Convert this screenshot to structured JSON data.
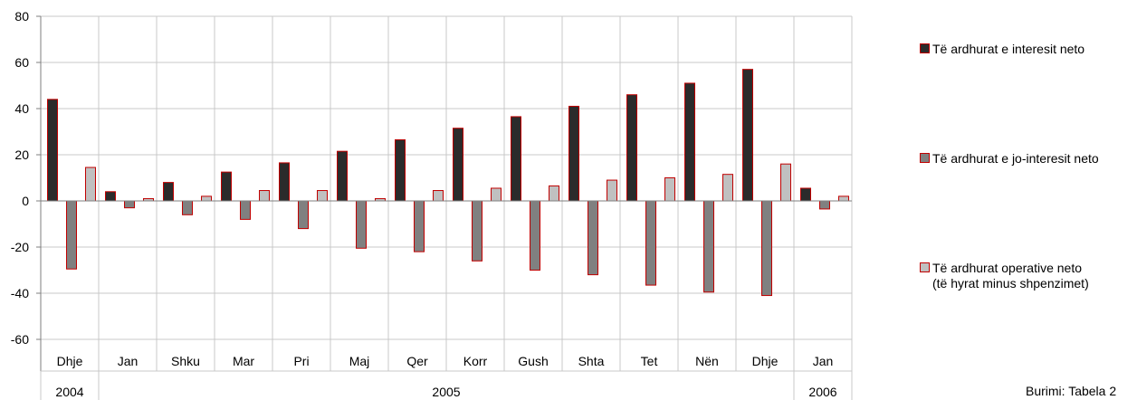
{
  "chart_data": {
    "type": "bar",
    "categories": [
      "Dhje",
      "Jan",
      "Shku",
      "Mar",
      "Pri",
      "Maj",
      "Qer",
      "Korr",
      "Gush",
      "Shta",
      "Tet",
      "Nën",
      "Dhje",
      "Jan"
    ],
    "year_groups": [
      {
        "label": "2004",
        "count": 1
      },
      {
        "label": "2005",
        "count": 12
      },
      {
        "label": "2006",
        "count": 1
      }
    ],
    "series": [
      {
        "name": "Të ardhurat e interesit neto",
        "color": "#2b2b2b",
        "values": [
          44,
          4,
          8,
          12.5,
          16.5,
          21.5,
          26.5,
          31.5,
          36.5,
          41,
          46,
          51,
          57,
          5.5
        ]
      },
      {
        "name": "Të ardhurat e jo-interesit neto",
        "color": "#808080",
        "values": [
          -29.5,
          -3,
          -6,
          -8,
          -12,
          -20.5,
          -22,
          -26,
          -30,
          -32,
          -36.5,
          -39.5,
          -41,
          -3.5
        ]
      },
      {
        "name": "Të ardhurat operative neto",
        "name_line2": "(të hyrat minus shpenzimet)",
        "color": "#c0c0c0",
        "values": [
          14.5,
          1,
          2,
          4.5,
          4.5,
          1,
          4.5,
          5.5,
          6.5,
          9,
          10,
          11.5,
          16,
          2
        ]
      }
    ],
    "ylim": [
      -60,
      80
    ],
    "yticks": [
      -60,
      -40,
      -20,
      0,
      20,
      40,
      60,
      80
    ],
    "grid": true,
    "legend": "right",
    "bar_outline_color": "#c00000",
    "source_note": "Burimi: Tabela 2"
  }
}
